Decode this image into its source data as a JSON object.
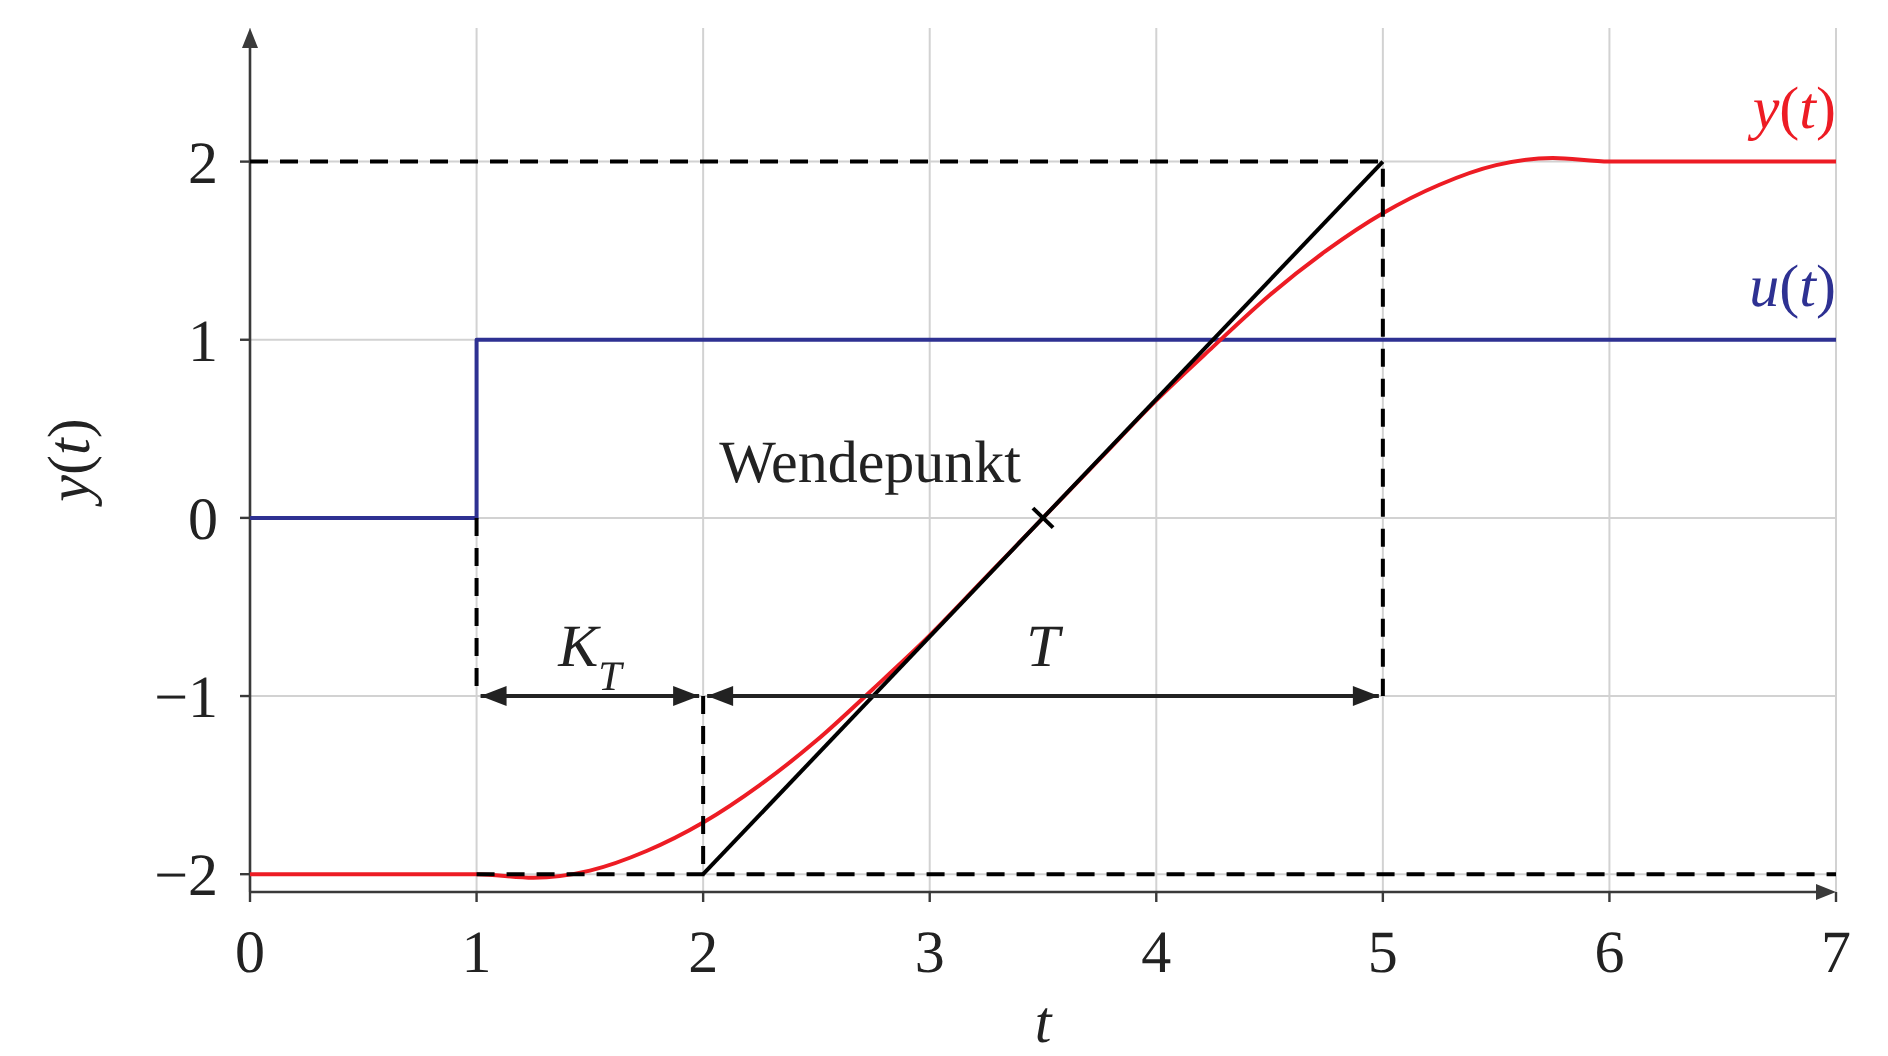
{
  "chart_data": {
    "type": "line",
    "xlabel": "t",
    "ylabel": "y(t)",
    "xlim": [
      0,
      7
    ],
    "ylim": [
      -2.1,
      2.75
    ],
    "xticks": [
      0,
      1,
      2,
      3,
      4,
      5,
      6,
      7
    ],
    "yticks": [
      {
        "value": -2,
        "label": "−2"
      },
      {
        "value": -1,
        "label": "−1"
      },
      0,
      1,
      2
    ],
    "grid": true,
    "annotations": [
      {
        "text": "Wendepunkt",
        "x": 3.5,
        "y": 0
      },
      "K$_{T}$",
      "T"
    ],
    "series": [
      {
        "name": "u(t)",
        "type": "step",
        "color": "#2e3192",
        "x": [
          0,
          1,
          7
        ],
        "values": [
          0,
          1,
          1
        ]
      },
      {
        "name": "y(t)",
        "color": "#ed1c24",
        "x": [
          0,
          1,
          1.25,
          1.5,
          1.75,
          2,
          2.25,
          2.5,
          2.75,
          3,
          3.25,
          3.5,
          3.75,
          4,
          4.25,
          4.5,
          4.75,
          5,
          5.25,
          5.5,
          5.75,
          6,
          7
        ],
        "values": [
          -2,
          -2,
          -2.02,
          -1.98,
          -1.87,
          -1.71,
          -1.5,
          -1.25,
          -0.96,
          -0.66,
          -0.33,
          0,
          0.33,
          0.66,
          0.96,
          1.25,
          1.5,
          1.71,
          1.87,
          1.98,
          2.02,
          2,
          2
        ]
      },
      {
        "color": "#000000",
        "line_style": "dashed",
        "x": [
          0,
          5,
          5
        ],
        "values": [
          2,
          2,
          -1
        ]
      },
      {
        "color": "#000000",
        "line_style": "dashed",
        "x": [
          1,
          1
        ],
        "values": [
          0,
          -1
        ]
      },
      {
        "color": "#000000",
        "line_style": "dashed",
        "x": [
          2,
          2
        ],
        "values": [
          -1,
          -2
        ]
      },
      {
        "color": "#000000",
        "line_style": "dashed",
        "x": [
          1,
          7
        ],
        "values": [
          -2,
          -2
        ]
      },
      {
        "color": "#000000",
        "x": [
          2,
          5
        ],
        "values": [
          -2,
          2
        ]
      }
    ]
  }
}
